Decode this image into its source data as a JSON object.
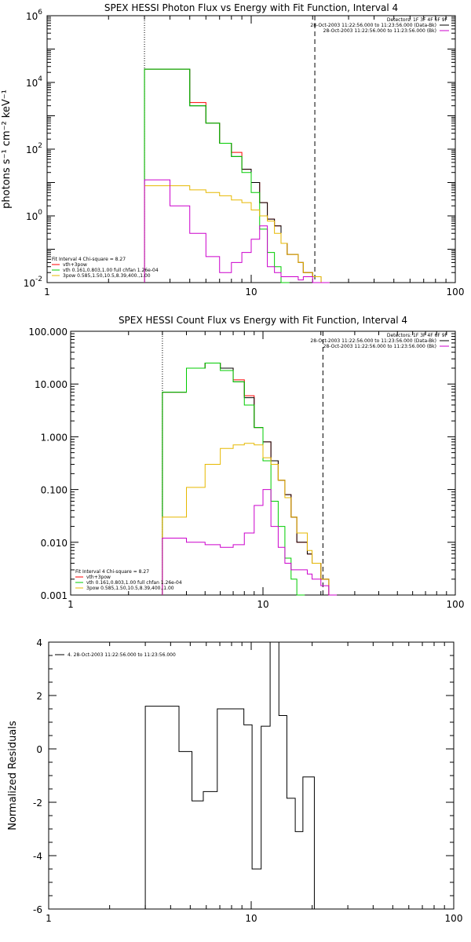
{
  "colors": {
    "black": "#000000",
    "red": "#ff0000",
    "green": "#00cc00",
    "yellow": "#e6b800",
    "magenta": "#cc00cc"
  },
  "chart_data": [
    {
      "type": "line",
      "title": "SPEX HESSI Photon Flux vs Energy with Fit Function, Interval 4",
      "ylabel": "photons s⁻¹ cm⁻² keV⁻¹",
      "xlabel": "",
      "xscale": "log",
      "yscale": "log",
      "xlim": [
        1,
        100
      ],
      "ylim": [
        0.01,
        1000000
      ],
      "x_ticks": [
        "1",
        "10",
        "100"
      ],
      "legend_top": [
        "Detectors: 1F 3F 4F 6F 9F",
        "28-Oct-2003 11:22:56.000 to 11:23:56.000 (Data-Bk)",
        "28-Oct-2003 11:22:56.000 to 11:23:56.000 (Bk)"
      ],
      "legend_bottom": [
        "Fit Interval  4   Chi-square = 8.27",
        "vth+3pow",
        "vth 0.161,0.803,1.00  full chfan 1.26e-04",
        "3pow 0.585,1.50,10.5,8.39,400.,1.00"
      ],
      "vlines": [
        3.0,
        20.5
      ],
      "series": [
        {
          "name": "vth+3pow",
          "color": "red",
          "x": [
            3,
            4,
            5,
            6,
            7,
            8,
            9,
            10,
            11,
            12,
            13,
            14,
            15,
            17,
            18,
            20,
            22
          ],
          "values": [
            25000,
            25000,
            2500,
            600,
            150,
            80,
            25,
            10,
            2.5,
            0.8,
            0.5,
            0.15,
            0.07,
            0.04,
            0.02,
            0.015,
            0.01
          ]
        },
        {
          "name": "data",
          "color": "black",
          "x": [
            3,
            4,
            5,
            6,
            7,
            8,
            9,
            10,
            11,
            12,
            13,
            14,
            15,
            17,
            18,
            20,
            22
          ],
          "values": [
            25000,
            25000,
            2000,
            600,
            150,
            60,
            25,
            10,
            2.5,
            0.8,
            0.5,
            0.15,
            0.07,
            0.04,
            0.02,
            0.015,
            0.01
          ]
        },
        {
          "name": "vth",
          "color": "green",
          "x": [
            3,
            4,
            5,
            6,
            7,
            8,
            9,
            10,
            11,
            12,
            13,
            14
          ],
          "values": [
            25000,
            25000,
            2000,
            600,
            150,
            60,
            20,
            5,
            0.4,
            0.08,
            0.03,
            0.01
          ]
        },
        {
          "name": "3pow",
          "color": "yellow",
          "x": [
            3,
            4,
            5,
            6,
            7,
            8,
            9,
            10,
            11,
            12,
            13,
            14,
            15,
            17,
            18,
            20,
            22
          ],
          "values": [
            8,
            8,
            6,
            5,
            4,
            3,
            2.5,
            1.5,
            1.0,
            0.7,
            0.3,
            0.15,
            0.07,
            0.04,
            0.02,
            0.015,
            0.01
          ]
        },
        {
          "name": "Bk",
          "color": "magenta",
          "x": [
            3,
            4,
            5,
            6,
            7,
            8,
            9,
            10,
            11,
            12,
            13,
            14,
            15,
            17,
            18,
            20,
            22
          ],
          "values": [
            12,
            2,
            0.3,
            0.06,
            0.02,
            0.04,
            0.08,
            0.2,
            0.5,
            0.03,
            0.02,
            0.015,
            0.015,
            0.012,
            0.015,
            0.01,
            0.01
          ]
        }
      ]
    },
    {
      "type": "line",
      "title": "SPEX HESSI Count Flux vs Energy with Fit Function, Interval 4",
      "ylabel": "",
      "xscale": "log",
      "yscale": "log",
      "xlim": [
        1,
        100
      ],
      "ylim": [
        0.001,
        100
      ],
      "y_ticks": [
        "100.000",
        "10.000",
        "1.000",
        "0.100",
        "0.010",
        "0.001"
      ],
      "x_ticks": [
        "1",
        "10",
        "100"
      ],
      "legend_top": [
        "Detectors: 1F 3F 4F 6F 9F",
        "28-Oct-2003 11:22:56.000 to 11:23:56.000 (Data-Bk)",
        "28-Oct-2003 11:22:56.000 to 11:23:56.000 (Bk)"
      ],
      "legend_bottom": [
        "Fit Interval  4   Chi-square = 8.27",
        "vth+3pow",
        "vth 0.161,0.803,1.00  full chfan 1.26e-04",
        "3pow 0.585,1.50,10.5,8.39,400.,1.00"
      ],
      "vlines": [
        3.0,
        20.5
      ],
      "series": [
        {
          "name": "vth+3pow",
          "color": "red",
          "x": [
            3,
            4,
            5,
            6,
            7,
            8,
            9,
            10,
            11,
            12,
            13,
            14,
            15,
            17,
            18,
            20,
            22
          ],
          "values": [
            7,
            20,
            25,
            20,
            12,
            6,
            1.5,
            0.8,
            0.35,
            0.15,
            0.08,
            0.03,
            0.01,
            0.006,
            0.004,
            0.002,
            0.001
          ]
        },
        {
          "name": "data",
          "color": "black",
          "x": [
            3,
            4,
            5,
            6,
            7,
            8,
            9,
            10,
            11,
            12,
            13,
            14,
            15,
            17,
            18,
            20,
            22
          ],
          "values": [
            7,
            20,
            25,
            20,
            11,
            5.5,
            1.5,
            0.8,
            0.35,
            0.15,
            0.08,
            0.03,
            0.01,
            0.006,
            0.004,
            0.002,
            0.001
          ]
        },
        {
          "name": "vth",
          "color": "green",
          "x": [
            3,
            4,
            5,
            6,
            7,
            8,
            9,
            10,
            11,
            12,
            13,
            14,
            15
          ],
          "values": [
            7,
            20,
            25,
            18,
            11,
            4,
            1.5,
            0.35,
            0.06,
            0.02,
            0.005,
            0.002,
            0.001
          ]
        },
        {
          "name": "3pow",
          "color": "yellow",
          "x": [
            3,
            4,
            5,
            6,
            7,
            8,
            9,
            10,
            11,
            12,
            13,
            14,
            15,
            17,
            18,
            20,
            22
          ],
          "values": [
            0.03,
            0.11,
            0.3,
            0.6,
            0.7,
            0.75,
            0.7,
            0.4,
            0.3,
            0.15,
            0.07,
            0.03,
            0.015,
            0.007,
            0.004,
            0.002,
            0.001
          ]
        },
        {
          "name": "Bk",
          "color": "magenta",
          "x": [
            3,
            4,
            5,
            6,
            7,
            8,
            9,
            10,
            11,
            12,
            13,
            14,
            15,
            17,
            18,
            20,
            22
          ],
          "values": [
            0.012,
            0.01,
            0.009,
            0.008,
            0.009,
            0.015,
            0.05,
            0.1,
            0.02,
            0.008,
            0.004,
            0.003,
            0.003,
            0.0025,
            0.002,
            0.0015,
            0.001
          ]
        }
      ]
    },
    {
      "type": "line",
      "title": "",
      "ylabel": "Normalized Residuals",
      "xscale": "log",
      "xlim": [
        1,
        100
      ],
      "ylim": [
        -6,
        4
      ],
      "y_ticks": [
        "4",
        "2",
        "0",
        "-2",
        "-4",
        "-6"
      ],
      "x_ticks": [
        "1",
        "10",
        "100"
      ],
      "legend_top": [
        "4. 28-Oct-2003 11:22:56.000 to 11:23:56.000"
      ],
      "series": [
        {
          "name": "residuals",
          "color": "black",
          "x": [
            3,
            3.7,
            4.4,
            5.1,
            5.8,
            6.8,
            7.9,
            9.2,
            10.1,
            11.2,
            12.4,
            13.7,
            15,
            16.5,
            18,
            20.5
          ],
          "values": [
            1.6,
            1.6,
            -0.1,
            -1.95,
            -1.6,
            1.5,
            1.5,
            0.9,
            -4.5,
            0.85,
            4.0,
            1.25,
            -1.85,
            -3.1,
            -1.05,
            -6
          ]
        }
      ]
    }
  ]
}
